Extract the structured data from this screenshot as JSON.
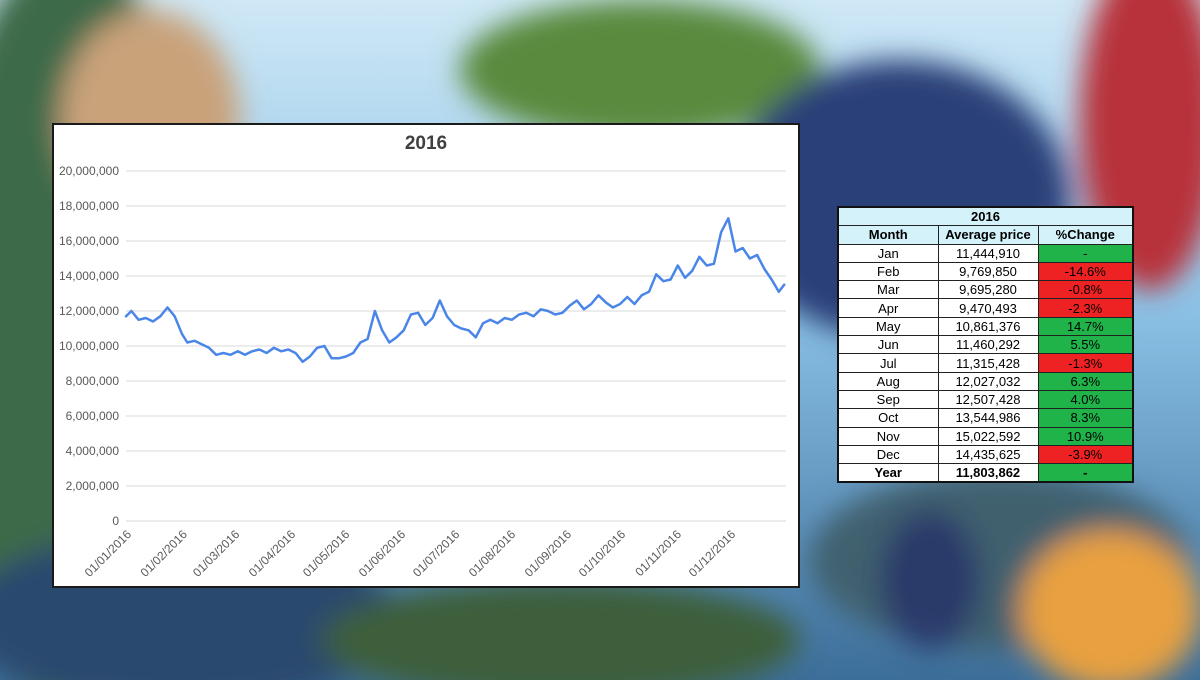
{
  "chart_data": {
    "type": "line",
    "title": "2016",
    "xlabel": "",
    "ylabel": "",
    "ylim": [
      0,
      20000000
    ],
    "y_ticks": [
      "0",
      "2,000,000",
      "4,000,000",
      "6,000,000",
      "8,000,000",
      "10,000,000",
      "12,000,000",
      "14,000,000",
      "16,000,000",
      "18,000,000",
      "20,000,000"
    ],
    "x_ticks": [
      "01/01/2016",
      "01/02/2016",
      "01/03/2016",
      "01/04/2016",
      "01/05/2016",
      "01/06/2016",
      "01/07/2016",
      "01/08/2016",
      "01/09/2016",
      "01/10/2016",
      "01/11/2016",
      "01/12/2016"
    ],
    "grid": true,
    "line_color": "#4a86e8",
    "series": [
      {
        "x": [
          "2016-01-01",
          "2016-01-04",
          "2016-01-08",
          "2016-01-12",
          "2016-01-16",
          "2016-01-20",
          "2016-01-24",
          "2016-01-28",
          "2016-02-01",
          "2016-02-04",
          "2016-02-08",
          "2016-02-12",
          "2016-02-16",
          "2016-02-20",
          "2016-02-24",
          "2016-02-28",
          "2016-03-03",
          "2016-03-07",
          "2016-03-11",
          "2016-03-15",
          "2016-03-19",
          "2016-03-23",
          "2016-03-27",
          "2016-03-31",
          "2016-04-04",
          "2016-04-08",
          "2016-04-12",
          "2016-04-16",
          "2016-04-20",
          "2016-04-24",
          "2016-04-28",
          "2016-05-02",
          "2016-05-06",
          "2016-05-10",
          "2016-05-14",
          "2016-05-18",
          "2016-05-22",
          "2016-05-26",
          "2016-05-30",
          "2016-06-03",
          "2016-06-07",
          "2016-06-11",
          "2016-06-15",
          "2016-06-19",
          "2016-06-23",
          "2016-06-27",
          "2016-07-01",
          "2016-07-05",
          "2016-07-09",
          "2016-07-13",
          "2016-07-17",
          "2016-07-21",
          "2016-07-25",
          "2016-07-29",
          "2016-08-02",
          "2016-08-06",
          "2016-08-10",
          "2016-08-14",
          "2016-08-18",
          "2016-08-22",
          "2016-08-26",
          "2016-08-30",
          "2016-09-03",
          "2016-09-07",
          "2016-09-11",
          "2016-09-15",
          "2016-09-19",
          "2016-09-23",
          "2016-09-27",
          "2016-10-01",
          "2016-10-05",
          "2016-10-09",
          "2016-10-13",
          "2016-10-17",
          "2016-10-21",
          "2016-10-25",
          "2016-10-29",
          "2016-11-02",
          "2016-11-06",
          "2016-11-10",
          "2016-11-14",
          "2016-11-18",
          "2016-11-22",
          "2016-11-26",
          "2016-11-30",
          "2016-12-04",
          "2016-12-08",
          "2016-12-12",
          "2016-12-16",
          "2016-12-20",
          "2016-12-24",
          "2016-12-28",
          "2016-12-31"
        ],
        "values": [
          11700000,
          12000000,
          11500000,
          11600000,
          11400000,
          11700000,
          12200000,
          11700000,
          10700000,
          10200000,
          10300000,
          10100000,
          9900000,
          9500000,
          9600000,
          9500000,
          9700000,
          9500000,
          9700000,
          9800000,
          9600000,
          9900000,
          9700000,
          9800000,
          9600000,
          9100000,
          9400000,
          9900000,
          10000000,
          9300000,
          9300000,
          9400000,
          9600000,
          10200000,
          10400000,
          12000000,
          10900000,
          10200000,
          10500000,
          10900000,
          11800000,
          11900000,
          11200000,
          11600000,
          12600000,
          11700000,
          11200000,
          11000000,
          10900000,
          10500000,
          11300000,
          11500000,
          11300000,
          11600000,
          11500000,
          11800000,
          11900000,
          11700000,
          12100000,
          12000000,
          11800000,
          11900000,
          12300000,
          12600000,
          12100000,
          12400000,
          12900000,
          12500000,
          12200000,
          12400000,
          12800000,
          12400000,
          12900000,
          13100000,
          14100000,
          13700000,
          13800000,
          14600000,
          13900000,
          14300000,
          15100000,
          14600000,
          14700000,
          16500000,
          17300000,
          15400000,
          15600000,
          15000000,
          15200000,
          14400000,
          13800000,
          13100000,
          13500000
        ]
      }
    ]
  },
  "table": {
    "title": "2016",
    "headers": [
      "Month",
      "Average price",
      "%Change"
    ],
    "rows": [
      {
        "month": "Jan",
        "price": "11,444,910",
        "change": "-",
        "status": "pos"
      },
      {
        "month": "Feb",
        "price": "9,769,850",
        "change": "-14.6%",
        "status": "neg"
      },
      {
        "month": "Mar",
        "price": "9,695,280",
        "change": "-0.8%",
        "status": "neg"
      },
      {
        "month": "Apr",
        "price": "9,470,493",
        "change": "-2.3%",
        "status": "neg"
      },
      {
        "month": "May",
        "price": "10,861,376",
        "change": "14.7%",
        "status": "pos"
      },
      {
        "month": "Jun",
        "price": "11,460,292",
        "change": "5.5%",
        "status": "pos"
      },
      {
        "month": "Jul",
        "price": "11,315,428",
        "change": "-1.3%",
        "status": "neg"
      },
      {
        "month": "Aug",
        "price": "12,027,032",
        "change": "6.3%",
        "status": "pos"
      },
      {
        "month": "Sep",
        "price": "12,507,428",
        "change": "4.0%",
        "status": "pos"
      },
      {
        "month": "Oct",
        "price": "13,544,986",
        "change": "8.3%",
        "status": "pos"
      },
      {
        "month": "Nov",
        "price": "15,022,592",
        "change": "10.9%",
        "status": "pos"
      },
      {
        "month": "Dec",
        "price": "14,435,625",
        "change": "-3.9%",
        "status": "neg"
      }
    ],
    "year_row": {
      "month": "Year",
      "price": "11,803,862",
      "change": "-",
      "status": "pos"
    },
    "colors": {
      "positive": "#1fb34a",
      "negative": "#ee2222",
      "header_bg": "#d3f2f9"
    }
  }
}
